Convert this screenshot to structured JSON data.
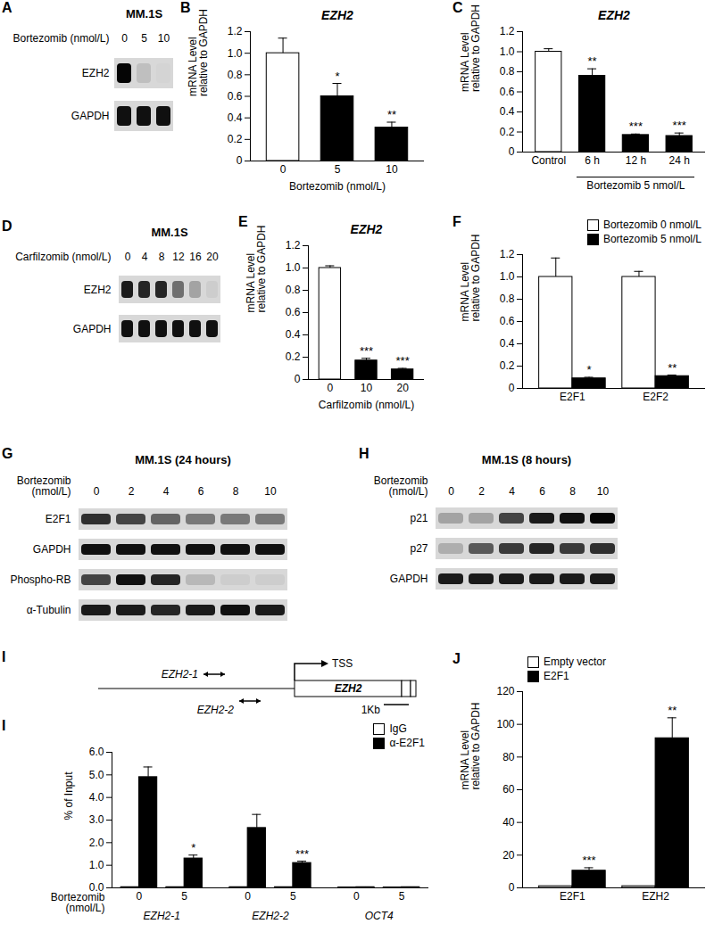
{
  "chart_data": [
    {
      "panel": "B",
      "type": "bar",
      "title": "EZH2",
      "categories": [
        "0",
        "5",
        "10"
      ],
      "values": [
        1.0,
        0.6,
        0.31
      ],
      "errors": [
        0.14,
        0.12,
        0.05
      ],
      "annotations": [
        null,
        "*",
        "**"
      ],
      "colors": [
        "#ffffff",
        "#000000",
        "#000000"
      ],
      "xlabel": "Bortezomib (nmol/L)",
      "ylabel": "mRNA Level\nrelative to GAPDH",
      "ylim": [
        0,
        1.2
      ],
      "yticks": [
        0,
        0.2,
        0.4,
        0.6,
        0.8,
        {
          "value": 1,
          "label": "1.0"
        },
        1.2
      ]
    },
    {
      "panel": "C",
      "type": "bar",
      "title": "EZH2",
      "groups": [
        {
          "label": null,
          "categories": [
            "Control"
          ]
        },
        {
          "label": "Bortezomib 5 nmol/L",
          "categories": [
            "6 h",
            "12 h",
            "24 h"
          ]
        }
      ],
      "values": [
        1.0,
        0.76,
        0.17,
        0.16
      ],
      "errors": [
        0.03,
        0.07,
        0.01,
        0.03
      ],
      "annotations": [
        null,
        "**",
        "***",
        "***"
      ],
      "colors": [
        "#ffffff",
        "#000000",
        "#000000",
        "#000000"
      ],
      "ylabel": "mRNA Level\nrelative to GAPDH",
      "ylim": [
        0,
        1.2
      ],
      "yticks": [
        0,
        0.2,
        0.4,
        0.6,
        0.8,
        {
          "value": 1,
          "label": "1.0"
        },
        1.2
      ]
    },
    {
      "panel": "E",
      "type": "bar",
      "title": "EZH2",
      "categories": [
        "0",
        "10",
        "20"
      ],
      "values": [
        1.0,
        0.17,
        0.09
      ],
      "errors": [
        0.02,
        0.02,
        0.01
      ],
      "annotations": [
        null,
        "***",
        "***"
      ],
      "colors": [
        "#ffffff",
        "#000000",
        "#000000"
      ],
      "xlabel": "Carfilzomib (nmol/L)",
      "ylabel": "mRNA Level\nrelative to GAPDH",
      "ylim": [
        0,
        1.2
      ],
      "yticks": [
        0,
        0.2,
        0.4,
        0.6,
        0.8,
        {
          "value": 1,
          "label": "1.0"
        },
        1.2
      ]
    },
    {
      "panel": "F",
      "type": "bar",
      "categories": [
        "E2F1",
        "E2F2"
      ],
      "series": [
        {
          "name": "Bortezomib 0 nmol/L",
          "color": "#ffffff",
          "values": [
            1.0,
            1.0
          ],
          "errors": [
            0.17,
            0.05
          ]
        },
        {
          "name": "Bortezomib 5 nmol/L",
          "color": "#000000",
          "values": [
            0.09,
            0.11
          ],
          "errors": [
            0.01,
            0.01
          ],
          "annotations": [
            "*",
            "**"
          ]
        }
      ],
      "legend": "top-right",
      "ylabel": "mRNA Level\nrelative to GAPDH",
      "ylim": [
        0,
        1.2
      ],
      "yticks": [
        0,
        0.2,
        0.4,
        0.6,
        0.8,
        {
          "value": 1,
          "label": "1.0"
        },
        1.2
      ]
    },
    {
      "panel": "I",
      "type": "bar",
      "groups": [
        {
          "label": "EZH2-1",
          "categories": [
            "0",
            "5"
          ]
        },
        {
          "label": "EZH2-2",
          "categories": [
            "0",
            "5"
          ]
        },
        {
          "label": "OCT4",
          "categories": [
            "0",
            "5"
          ]
        }
      ],
      "series": [
        {
          "name": "IgG",
          "color": "#ffffff",
          "values": [
            0.03,
            0.03,
            0.03,
            0.03,
            0.02,
            0.02
          ]
        },
        {
          "name": "α-E2F1",
          "color": "#000000",
          "values": [
            4.9,
            1.3,
            2.65,
            1.1,
            0.03,
            0.03
          ],
          "errors": [
            0.45,
            0.15,
            0.6,
            0.08,
            0.01,
            0.01
          ],
          "annotations": [
            null,
            "*",
            null,
            "***",
            null,
            null
          ]
        }
      ],
      "legend": "top-right",
      "xlabel": "Bortezomib (nmol/L)",
      "ylabel": "% of Input",
      "ylim": [
        0,
        6
      ],
      "yticks": [
        {
          "value": 0,
          "label": "0.0"
        },
        {
          "value": 1,
          "label": "1.0"
        },
        {
          "value": 2,
          "label": "2.0"
        },
        {
          "value": 3,
          "label": "3.0"
        },
        {
          "value": 4,
          "label": "4.0"
        },
        {
          "value": 5,
          "label": "5.0"
        },
        {
          "value": 6,
          "label": "6.0"
        }
      ]
    },
    {
      "panel": "J",
      "type": "bar",
      "categories": [
        "E2F1",
        "EZH2"
      ],
      "series": [
        {
          "name": "Empty vector",
          "color": "#ffffff",
          "values": [
            1.0,
            1.0
          ]
        },
        {
          "name": "E2F1",
          "color": "#000000",
          "values": [
            10.5,
            91.5
          ],
          "errors": [
            1.8,
            12.5
          ],
          "annotations": [
            "***",
            "**"
          ]
        }
      ],
      "legend": "top-left",
      "ylabel": "mRNA Level\nrelative to GAPDH",
      "ylim": [
        0,
        120
      ],
      "yticks": [
        0,
        20,
        40,
        60,
        80,
        100,
        120
      ]
    }
  ],
  "blots": [
    {
      "panel": "A",
      "title": "MM.1S",
      "treatment": "Bortezomib (nmol/L)",
      "lanes": [
        "0",
        "5",
        "10"
      ],
      "bands": [
        {
          "name": "EZH2",
          "intensity": [
            1.0,
            0.12,
            0.02
          ]
        },
        {
          "name": "GAPDH",
          "intensity": [
            0.95,
            0.95,
            0.95
          ]
        }
      ]
    },
    {
      "panel": "D",
      "title": "MM.1S",
      "treatment": "Carfilzomib (nmol/L)",
      "lanes": [
        "0",
        "4",
        "8",
        "12",
        "16",
        "20"
      ],
      "bands": [
        {
          "name": "EZH2",
          "intensity": [
            0.9,
            0.85,
            0.85,
            0.5,
            0.25,
            0.05
          ]
        },
        {
          "name": "GAPDH",
          "intensity": [
            0.95,
            0.95,
            0.95,
            0.95,
            0.95,
            0.95
          ]
        }
      ]
    },
    {
      "panel": "G",
      "title": "MM.1S (24 hours)",
      "treatment": "Bortezomib (nmol/L)",
      "lanes": [
        "0",
        "2",
        "4",
        "6",
        "8",
        "10"
      ],
      "bands": [
        {
          "name": "E2F1",
          "intensity": [
            0.8,
            0.7,
            0.55,
            0.45,
            0.45,
            0.45
          ]
        },
        {
          "name": "GAPDH",
          "intensity": [
            0.95,
            0.95,
            0.95,
            0.95,
            0.95,
            0.95
          ]
        },
        {
          "name": "Phospho-RB",
          "intensity": [
            0.7,
            0.95,
            0.85,
            0.15,
            0.05,
            0.05
          ]
        },
        {
          "name": "α-Tubulin",
          "intensity": [
            0.9,
            0.9,
            0.85,
            0.9,
            0.95,
            0.9
          ]
        }
      ]
    },
    {
      "panel": "H",
      "title": "MM.1S (8 hours)",
      "treatment": "Bortezomib (nmol/L)",
      "lanes": [
        "0",
        "2",
        "4",
        "6",
        "8",
        "10"
      ],
      "bands": [
        {
          "name": "p21",
          "intensity": [
            0.25,
            0.25,
            0.7,
            0.9,
            0.95,
            1.0
          ]
        },
        {
          "name": "p27",
          "intensity": [
            0.2,
            0.6,
            0.75,
            0.85,
            0.75,
            0.8
          ]
        },
        {
          "name": "GAPDH",
          "intensity": [
            0.9,
            0.9,
            0.9,
            0.9,
            0.9,
            0.9
          ]
        }
      ]
    }
  ],
  "diagram": {
    "primers": [
      "EZH2-1",
      "EZH2-2"
    ],
    "tss": "TSS",
    "gene": "EZH2",
    "scale": "1Kb"
  }
}
